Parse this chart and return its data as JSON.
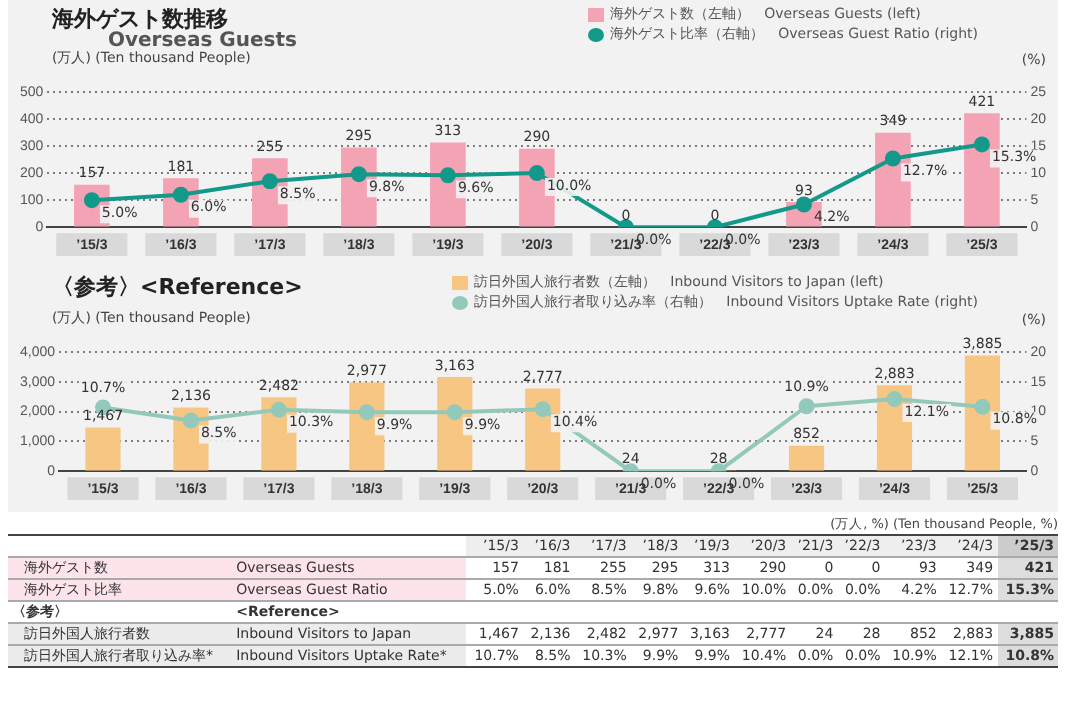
{
  "chart_data": [
    {
      "type": "bar",
      "title": "海外ゲスト数推移",
      "subtitle": "Overseas Guests",
      "ylabel": "(万人) (Ten thousand People)",
      "y2label": "(%)",
      "categories": [
        "’15/3",
        "’16/3",
        "’17/3",
        "’18/3",
        "’19/3",
        "’20/3",
        "’21/3",
        "’22/3",
        "’23/3",
        "’24/3",
        "’25/3"
      ],
      "series": [
        {
          "name": "海外ゲスト数（左軸）　Overseas Guests (left)",
          "color": "#f4a3b5",
          "values": [
            157,
            181,
            255,
            295,
            313,
            290,
            0,
            0,
            93,
            349,
            421
          ],
          "value_labels": [
            "157",
            "181",
            "255",
            "295",
            "313",
            "290",
            "0",
            "0",
            "93",
            "349",
            "421"
          ]
        },
        {
          "name": "海外ゲスト比率（右軸）　Overseas Guest Ratio (right)",
          "type": "line",
          "axis": "y2",
          "color": "#12998a",
          "values": [
            5.0,
            6.0,
            8.5,
            9.8,
            9.6,
            10.0,
            0.0,
            0.0,
            4.2,
            12.7,
            15.3
          ],
          "value_labels": [
            "5.0%",
            "6.0%",
            "8.5%",
            "9.8%",
            "9.6%",
            "10.0%",
            "0.0%",
            "0.0%",
            "4.2%",
            "12.7%",
            "15.3%"
          ]
        }
      ],
      "ylim": [
        0,
        500
      ],
      "yticks": [
        0,
        100,
        200,
        300,
        400,
        500
      ],
      "y2lim": [
        0,
        25
      ],
      "y2ticks": [
        0,
        5,
        10,
        15,
        20,
        25
      ],
      "grid": "y",
      "legend": "top right",
      "marker": "circle",
      "line_style": "solid",
      "annotations": [
        "(万人, %) (Ten thousand People, %)",
        "海外ゲスト数",
        "Overseas Guests",
        "海外ゲスト比率",
        "Overseas Guest Ratio"
      ]
    },
    {
      "type": "bar",
      "title": "〈参考〉<Reference>",
      "ylabel": "(万人) (Ten thousand People)",
      "y2label": "(%)",
      "categories": [
        "’15/3",
        "’16/3",
        "’17/3",
        "’18/3",
        "’19/3",
        "’20/3",
        "’21/3",
        "’22/3",
        "’23/3",
        "’24/3",
        "’25/3"
      ],
      "series": [
        {
          "name": "訪日外国人旅行者数（左軸）　Inbound Visitors to Japan (left)",
          "color": "#f8c683",
          "values": [
            1467,
            2136,
            2482,
            2977,
            3163,
            2777,
            24,
            28,
            852,
            2883,
            3885
          ],
          "value_labels": [
            "1,467",
            "2,136",
            "2,482",
            "2,977",
            "3,163",
            "2,777",
            "24",
            "28",
            "852",
            "2,883",
            "3,885"
          ]
        },
        {
          "name": "訪日外国人旅行者取り込み率（右軸）　Inbound Visitors Uptake Rate (right)",
          "type": "line",
          "axis": "y2",
          "color": "#93c9bb",
          "values": [
            10.7,
            8.5,
            10.3,
            9.9,
            9.9,
            10.4,
            0.0,
            0.0,
            10.9,
            12.1,
            10.8
          ],
          "value_labels": [
            "10.7%",
            "8.5%",
            "10.3%",
            "9.9%",
            "9.9%",
            "10.4%",
            "0.0%",
            "0.0%",
            "10.9%",
            "12.1%",
            "10.8%"
          ]
        }
      ],
      "ylim": [
        0,
        4000
      ],
      "yticks": [
        0,
        {
          "value": 1000,
          "label": "1,000"
        },
        {
          "value": 2000,
          "label": "2,000"
        },
        {
          "value": 3000,
          "label": "3,000"
        },
        {
          "value": 4000,
          "label": "4,000"
        }
      ],
      "y2lim": [
        0,
        20
      ],
      "y2ticks": [
        0,
        5,
        10,
        15,
        20
      ],
      "grid": "y",
      "legend": "top right",
      "marker": "circle",
      "line_style": "solid",
      "annotations": [
        "〈参考〉",
        "<Reference>",
        "訪日外国人旅行者数",
        "Inbound Visitors to Japan",
        "訪日外国人旅行者取り込み率*",
        "Inbound Visitors Uptake Rate*"
      ]
    }
  ]
}
